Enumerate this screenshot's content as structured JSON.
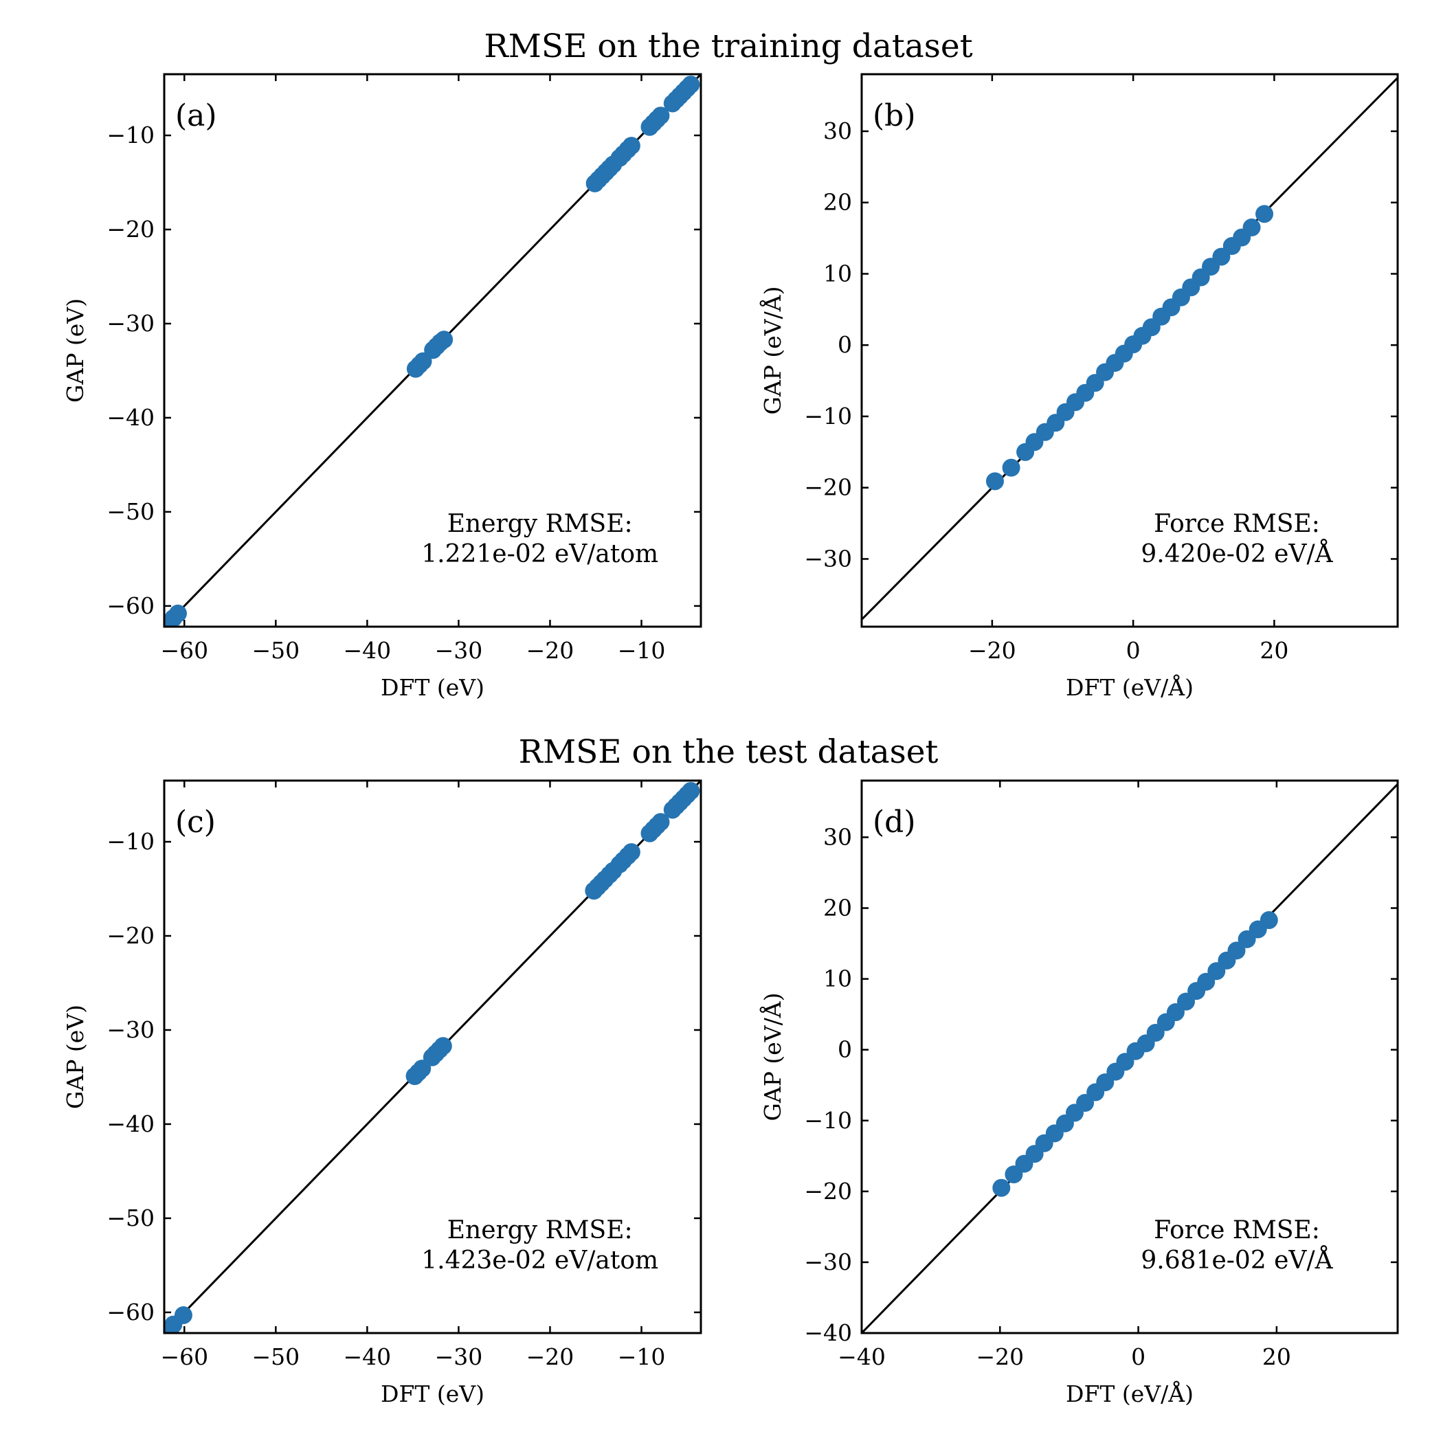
{
  "titles": {
    "top": "RMSE on the training dataset",
    "bottom": "RMSE on the test dataset"
  },
  "colors": {
    "points": "#2674b2",
    "line": "#000000",
    "frame": "#000000"
  },
  "chart_data": [
    {
      "type": "scatter",
      "panel": "(a)",
      "xlabel": "DFT (eV)",
      "ylabel": "GAP (eV)",
      "xlim": [
        -62.2,
        -3.5
      ],
      "ylim": [
        -62.2,
        -3.5
      ],
      "xticks": [
        -60,
        -50,
        -40,
        -30,
        -20,
        -10
      ],
      "yticks": [
        -60,
        -50,
        -40,
        -30,
        -20,
        -10
      ],
      "xticklabels": [
        "−60",
        "−50",
        "−40",
        "−30",
        "−20",
        "−10"
      ],
      "yticklabels": [
        "−60",
        "−50",
        "−40",
        "−30",
        "−20",
        "−10"
      ],
      "annotation": [
        "Energy RMSE:",
        "1.221e-02 eV/atom"
      ],
      "reference_line": "y = x",
      "grid": false,
      "series": [
        {
          "points": [
            [
              -61.8,
              -61.9
            ],
            [
              -61.2,
              -61.3
            ],
            [
              -60.7,
              -60.8
            ],
            [
              -34.7,
              -34.8
            ],
            [
              -34.3,
              -34.4
            ],
            [
              -33.9,
              -34.0
            ],
            [
              -32.8,
              -32.8
            ],
            [
              -32.4,
              -32.4
            ],
            [
              -32.0,
              -32.0
            ],
            [
              -31.6,
              -31.7
            ],
            [
              -15.1,
              -15.1
            ],
            [
              -14.7,
              -14.7
            ],
            [
              -14.3,
              -14.3
            ],
            [
              -13.9,
              -13.9
            ],
            [
              -13.5,
              -13.5
            ],
            [
              -13.1,
              -13.1
            ],
            [
              -12.4,
              -12.4
            ],
            [
              -12.0,
              -12.0
            ],
            [
              -11.5,
              -11.5
            ],
            [
              -11.1,
              -11.1
            ],
            [
              -9.1,
              -9.1
            ],
            [
              -8.7,
              -8.7
            ],
            [
              -8.3,
              -8.3
            ],
            [
              -7.9,
              -7.9
            ],
            [
              -6.6,
              -6.6
            ],
            [
              -6.2,
              -6.2
            ],
            [
              -5.8,
              -5.8
            ],
            [
              -5.4,
              -5.4
            ],
            [
              -5.0,
              -5.0
            ],
            [
              -4.6,
              -4.6
            ]
          ]
        }
      ]
    },
    {
      "type": "scatter",
      "panel": "(b)",
      "xlabel": "DFT (eV/Å)",
      "ylabel": "GAP (eV/Å)",
      "xlim": [
        -38.5,
        37.5
      ],
      "ylim": [
        -39.5,
        38.0
      ],
      "xticks": [
        -20,
        0,
        20
      ],
      "yticks": [
        -30,
        -20,
        -10,
        0,
        10,
        20,
        30
      ],
      "xticklabels": [
        "−20",
        "0",
        "20"
      ],
      "yticklabels": [
        "−30",
        "−20",
        "−10",
        "0",
        "10",
        "20",
        "30"
      ],
      "annotation": [
        "Force RMSE:",
        "9.420e-02 eV/Å"
      ],
      "reference_line": "y = x",
      "grid": false,
      "series": [
        {
          "points": [
            [
              -19.6,
              -19.1
            ],
            [
              -17.3,
              -17.2
            ],
            [
              -15.3,
              -15.0
            ],
            [
              -14.0,
              -13.6
            ],
            [
              -12.5,
              -12.2
            ],
            [
              -11.0,
              -10.9
            ],
            [
              -9.6,
              -9.4
            ],
            [
              -8.2,
              -8.0
            ],
            [
              -6.8,
              -6.7
            ],
            [
              -5.4,
              -5.3
            ],
            [
              -4.0,
              -3.8
            ],
            [
              -2.6,
              -2.5
            ],
            [
              -1.3,
              -1.2
            ],
            [
              0.0,
              0.1
            ],
            [
              1.3,
              1.3
            ],
            [
              2.6,
              2.5
            ],
            [
              4.0,
              4.0
            ],
            [
              5.4,
              5.3
            ],
            [
              6.8,
              6.7
            ],
            [
              8.2,
              8.1
            ],
            [
              9.6,
              9.5
            ],
            [
              11.0,
              11.0
            ],
            [
              12.5,
              12.4
            ],
            [
              14.0,
              13.9
            ],
            [
              15.4,
              15.1
            ],
            [
              16.8,
              16.5
            ],
            [
              18.6,
              18.4
            ]
          ]
        }
      ]
    },
    {
      "type": "scatter",
      "panel": "(c)",
      "xlabel": "DFT (eV)",
      "ylabel": "GAP (eV)",
      "xlim": [
        -62.2,
        -3.5
      ],
      "ylim": [
        -62.2,
        -3.5
      ],
      "xticks": [
        -60,
        -50,
        -40,
        -30,
        -20,
        -10
      ],
      "yticks": [
        -60,
        -50,
        -40,
        -30,
        -20,
        -10
      ],
      "xticklabels": [
        "−60",
        "−50",
        "−40",
        "−30",
        "−20",
        "−10"
      ],
      "yticklabels": [
        "−60",
        "−50",
        "−40",
        "−30",
        "−20",
        "−10"
      ],
      "annotation": [
        "Energy RMSE:",
        "1.423e-02 eV/atom"
      ],
      "reference_line": "y = x",
      "grid": false,
      "series": [
        {
          "points": [
            [
              -61.8,
              -61.9
            ],
            [
              -61.2,
              -61.3
            ],
            [
              -60.1,
              -60.3
            ],
            [
              -34.8,
              -34.9
            ],
            [
              -34.4,
              -34.5
            ],
            [
              -34.0,
              -34.1
            ],
            [
              -32.9,
              -32.9
            ],
            [
              -32.5,
              -32.5
            ],
            [
              -32.1,
              -32.1
            ],
            [
              -31.7,
              -31.7
            ],
            [
              -15.2,
              -15.2
            ],
            [
              -14.8,
              -14.8
            ],
            [
              -14.4,
              -14.4
            ],
            [
              -14.0,
              -14.0
            ],
            [
              -13.5,
              -13.5
            ],
            [
              -13.1,
              -13.1
            ],
            [
              -12.4,
              -12.4
            ],
            [
              -12.0,
              -12.0
            ],
            [
              -11.5,
              -11.5
            ],
            [
              -11.1,
              -11.1
            ],
            [
              -9.1,
              -9.1
            ],
            [
              -8.7,
              -8.7
            ],
            [
              -8.3,
              -8.3
            ],
            [
              -7.9,
              -7.9
            ],
            [
              -6.6,
              -6.6
            ],
            [
              -6.2,
              -6.2
            ],
            [
              -5.8,
              -5.8
            ],
            [
              -5.4,
              -5.4
            ],
            [
              -5.0,
              -5.0
            ],
            [
              -4.6,
              -4.6
            ]
          ]
        }
      ]
    },
    {
      "type": "scatter",
      "panel": "(d)",
      "xlabel": "DFT (eV/Å)",
      "ylabel": "GAP (eV/Å)",
      "xlim": [
        -40.0,
        37.5
      ],
      "ylim": [
        -40.0,
        38.0
      ],
      "xticks": [
        -40,
        -20,
        0,
        20
      ],
      "yticks": [
        -40,
        -30,
        -20,
        -10,
        0,
        10,
        20,
        30
      ],
      "xticklabels": [
        "−40",
        "−20",
        "0",
        "20"
      ],
      "yticklabels": [
        "−40",
        "−30",
        "−20",
        "−10",
        "0",
        "10",
        "20",
        "30"
      ],
      "annotation": [
        "Force RMSE:",
        "9.681e-02 eV/Å"
      ],
      "reference_line": "y = x",
      "grid": false,
      "series": [
        {
          "points": [
            [
              -19.8,
              -19.5
            ],
            [
              -18.0,
              -17.6
            ],
            [
              -16.5,
              -16.1
            ],
            [
              -15.0,
              -14.7
            ],
            [
              -13.6,
              -13.2
            ],
            [
              -12.1,
              -11.8
            ],
            [
              -10.6,
              -10.4
            ],
            [
              -9.2,
              -8.9
            ],
            [
              -7.7,
              -7.5
            ],
            [
              -6.2,
              -6.0
            ],
            [
              -4.8,
              -4.6
            ],
            [
              -3.3,
              -3.1
            ],
            [
              -1.9,
              -1.7
            ],
            [
              -0.4,
              -0.2
            ],
            [
              1.1,
              0.9
            ],
            [
              2.5,
              2.4
            ],
            [
              4.0,
              3.9
            ],
            [
              5.4,
              5.3
            ],
            [
              6.9,
              6.8
            ],
            [
              8.4,
              8.3
            ],
            [
              9.8,
              9.6
            ],
            [
              11.3,
              11.1
            ],
            [
              12.8,
              12.6
            ],
            [
              14.2,
              14.0
            ],
            [
              15.7,
              15.6
            ],
            [
              17.3,
              17.0
            ],
            [
              18.9,
              18.3
            ]
          ]
        }
      ]
    }
  ]
}
